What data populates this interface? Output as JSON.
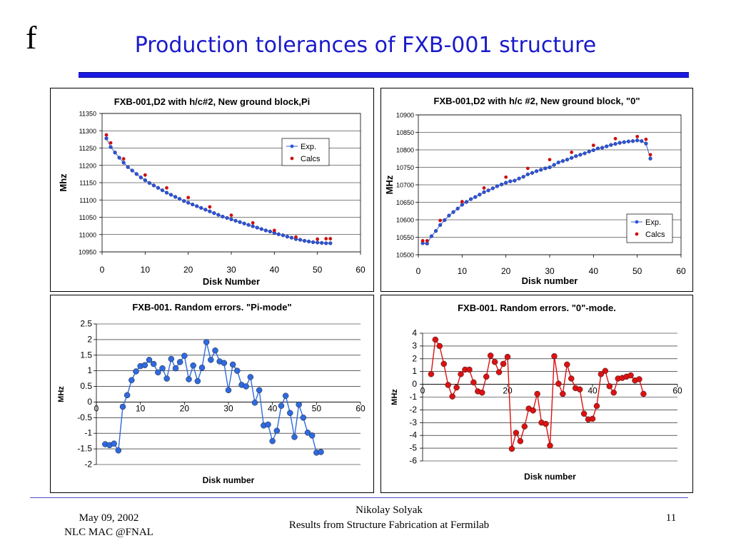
{
  "slide": {
    "logo": "f",
    "title": "Production tolerances of FXB-001 structure"
  },
  "footer": {
    "date": "May 09, 2002",
    "venue": "NLC MAC @FNAL",
    "author": "Nikolay Solyak",
    "subtitle": "Results from Structure Fabrication at Fermilab",
    "page": "11"
  },
  "colors": {
    "title": "#1a1acc",
    "exp_line": "#3a5fcd",
    "exp_marker": "#2e54d6",
    "calc_marker": "#cc1111",
    "pi_series": "#2e6ae0",
    "zero_series": "#dd1111"
  },
  "chart_data": [
    {
      "type": "line",
      "title": "FXB-001,D2 with h/c#2, New ground block,Pi",
      "xlabel": "Disk Number",
      "ylabel": "Mhz",
      "xlim": [
        0,
        60
      ],
      "ylim": [
        10950,
        11350
      ],
      "xticks": [
        0,
        10,
        20,
        30,
        40,
        50,
        60
      ],
      "yticks": [
        10950,
        11000,
        11050,
        11100,
        11150,
        11200,
        11250,
        11300,
        11350
      ],
      "grid": true,
      "legend_position": "top-right",
      "series": [
        {
          "name": "Exp.",
          "marker": "circle",
          "x": [
            1,
            2,
            3,
            4,
            5,
            6,
            7,
            8,
            9,
            10,
            11,
            12,
            13,
            14,
            15,
            16,
            17,
            18,
            19,
            20,
            21,
            22,
            23,
            24,
            25,
            26,
            27,
            28,
            29,
            30,
            31,
            32,
            33,
            34,
            35,
            36,
            37,
            38,
            39,
            40,
            41,
            42,
            43,
            44,
            45,
            46,
            47,
            48,
            49,
            50,
            51,
            52,
            53
          ],
          "y": [
            11278,
            11253,
            11237,
            11222,
            11208,
            11195,
            11185,
            11175,
            11165,
            11157,
            11149,
            11142,
            11135,
            11128,
            11121,
            11115,
            11109,
            11103,
            11097,
            11092,
            11087,
            11082,
            11077,
            11072,
            11067,
            11062,
            11057,
            11052,
            11048,
            11044,
            11040,
            11036,
            11032,
            11028,
            11024,
            11020,
            11016,
            11012,
            11009,
            11005,
            11001,
            10998,
            10994,
            10991,
            10987,
            10985,
            10982,
            10980,
            10978,
            10977,
            10976,
            10975,
            10975
          ]
        },
        {
          "name": "Calcs",
          "marker": "dot",
          "x": [
            1,
            2,
            5,
            10,
            15,
            20,
            25,
            30,
            35,
            40,
            45,
            50,
            52,
            53
          ],
          "y": [
            11288,
            11265,
            11219,
            11172,
            11135,
            11107,
            11080,
            11056,
            11034,
            11012,
            10993,
            10987,
            10988,
            10988
          ]
        }
      ]
    },
    {
      "type": "line",
      "title": "FXB-001,D2 with h/c #2, New ground block, \"0\"",
      "xlabel": "Disk number",
      "ylabel": "MHz",
      "xlim": [
        0,
        60
      ],
      "ylim": [
        10500,
        10900
      ],
      "xticks": [
        0,
        10,
        20,
        30,
        40,
        50,
        60
      ],
      "yticks": [
        10500,
        10550,
        10600,
        10650,
        10700,
        10750,
        10800,
        10850,
        10900
      ],
      "grid": true,
      "legend_position": "bottom-right",
      "series": [
        {
          "name": "Exp.",
          "marker": "circle",
          "x": [
            1,
            2,
            3,
            4,
            5,
            6,
            7,
            8,
            9,
            10,
            11,
            12,
            13,
            14,
            15,
            16,
            17,
            18,
            19,
            20,
            21,
            22,
            23,
            24,
            25,
            26,
            27,
            28,
            29,
            30,
            31,
            32,
            33,
            34,
            35,
            36,
            37,
            38,
            39,
            40,
            41,
            42,
            43,
            44,
            45,
            46,
            47,
            48,
            49,
            50,
            51,
            52,
            53
          ],
          "y": [
            10533,
            10532,
            10553,
            10568,
            10585,
            10599,
            10612,
            10622,
            10632,
            10643,
            10651,
            10659,
            10665,
            10672,
            10679,
            10684,
            10690,
            10696,
            10701,
            10706,
            10710,
            10712,
            10718,
            10723,
            10730,
            10734,
            10739,
            10743,
            10747,
            10750,
            10757,
            10764,
            10768,
            10772,
            10777,
            10782,
            10786,
            10790,
            10795,
            10799,
            10804,
            10806,
            10810,
            10814,
            10817,
            10820,
            10822,
            10824,
            10825,
            10827,
            10825,
            10818,
            10775
          ]
        },
        {
          "name": "Calcs",
          "marker": "dot",
          "x": [
            1,
            2,
            5,
            10,
            15,
            20,
            25,
            30,
            35,
            40,
            45,
            50,
            52,
            53
          ],
          "y": [
            10540,
            10540,
            10598,
            10652,
            10691,
            10722,
            10747,
            10772,
            10793,
            10813,
            10832,
            10838,
            10830,
            10786
          ]
        }
      ]
    },
    {
      "type": "line",
      "title": "FXB-001. Random errors. \"Pi-mode\"",
      "xlabel": "Disk number",
      "ylabel": "MHz",
      "xlim": [
        0,
        60
      ],
      "ylim": [
        -2,
        2.5
      ],
      "xticks": [
        0,
        10,
        20,
        30,
        40,
        50,
        60
      ],
      "yticks": [
        -2,
        -1.5,
        -1,
        -0.5,
        0,
        0.5,
        1,
        1.5,
        2,
        2.5
      ],
      "grid": true,
      "series": [
        {
          "marker": "circle",
          "x": [
            2,
            3,
            4,
            5,
            6,
            7,
            8,
            9,
            10,
            11,
            12,
            13,
            14,
            15,
            16,
            17,
            18,
            19,
            20,
            21,
            22,
            23,
            24,
            25,
            26,
            27,
            28,
            29,
            30,
            31,
            32,
            33,
            34,
            35,
            36,
            37,
            38,
            39,
            40,
            41,
            42,
            43,
            44,
            45,
            46,
            47,
            48,
            49,
            50,
            51
          ],
          "y": [
            -1.35,
            -1.38,
            -1.33,
            -1.55,
            -0.15,
            0.22,
            0.7,
            0.98,
            1.15,
            1.18,
            1.35,
            1.22,
            0.95,
            1.08,
            0.75,
            1.38,
            1.08,
            1.28,
            1.48,
            0.73,
            1.17,
            0.67,
            1.1,
            1.92,
            1.35,
            1.65,
            1.3,
            1.25,
            0.38,
            1.2,
            1.0,
            0.55,
            0.5,
            0.8,
            -0.02,
            0.38,
            -0.75,
            -0.72,
            -1.25,
            -0.92,
            -0.12,
            0.2,
            -0.35,
            -1.12,
            -0.08,
            -0.5,
            -0.98,
            -1.07,
            -1.62,
            -1.6
          ]
        }
      ]
    },
    {
      "type": "line",
      "title": "FXB-001. Random errors. \"0\"-mode.",
      "xlabel": "Disk number",
      "ylabel": "MHz",
      "xlim": [
        0,
        60
      ],
      "ylim": [
        -6,
        4
      ],
      "xticks": [
        0,
        20,
        40,
        60
      ],
      "yticks": [
        -6,
        -5,
        -4,
        -3,
        -2,
        -1,
        0,
        1,
        2,
        3,
        4
      ],
      "grid": true,
      "series": [
        {
          "marker": "circle",
          "x": [
            2,
            3,
            4,
            5,
            6,
            7,
            8,
            9,
            10,
            11,
            12,
            13,
            14,
            15,
            16,
            17,
            18,
            19,
            20,
            21,
            22,
            23,
            24,
            25,
            26,
            27,
            28,
            29,
            30,
            31,
            32,
            33,
            34,
            35,
            36,
            37,
            38,
            39,
            40,
            41,
            42,
            43,
            44,
            45,
            46,
            47,
            48,
            49,
            50,
            51,
            52
          ],
          "y": [
            0.8,
            3.5,
            3.0,
            1.6,
            -0.05,
            -0.95,
            -0.25,
            0.8,
            1.15,
            1.15,
            0.15,
            -0.55,
            -0.65,
            0.6,
            2.25,
            1.75,
            0.95,
            1.6,
            2.15,
            -5.05,
            -3.8,
            -4.45,
            -3.3,
            -1.9,
            -2.05,
            -0.75,
            -3.0,
            -3.1,
            -4.8,
            2.2,
            0.05,
            -0.75,
            1.55,
            0.45,
            -0.3,
            -0.4,
            -2.3,
            -2.75,
            -2.7,
            -1.7,
            0.8,
            1.05,
            -0.15,
            -0.65,
            0.45,
            0.5,
            0.6,
            0.7,
            0.3,
            0.4,
            -0.75
          ]
        }
      ]
    }
  ]
}
